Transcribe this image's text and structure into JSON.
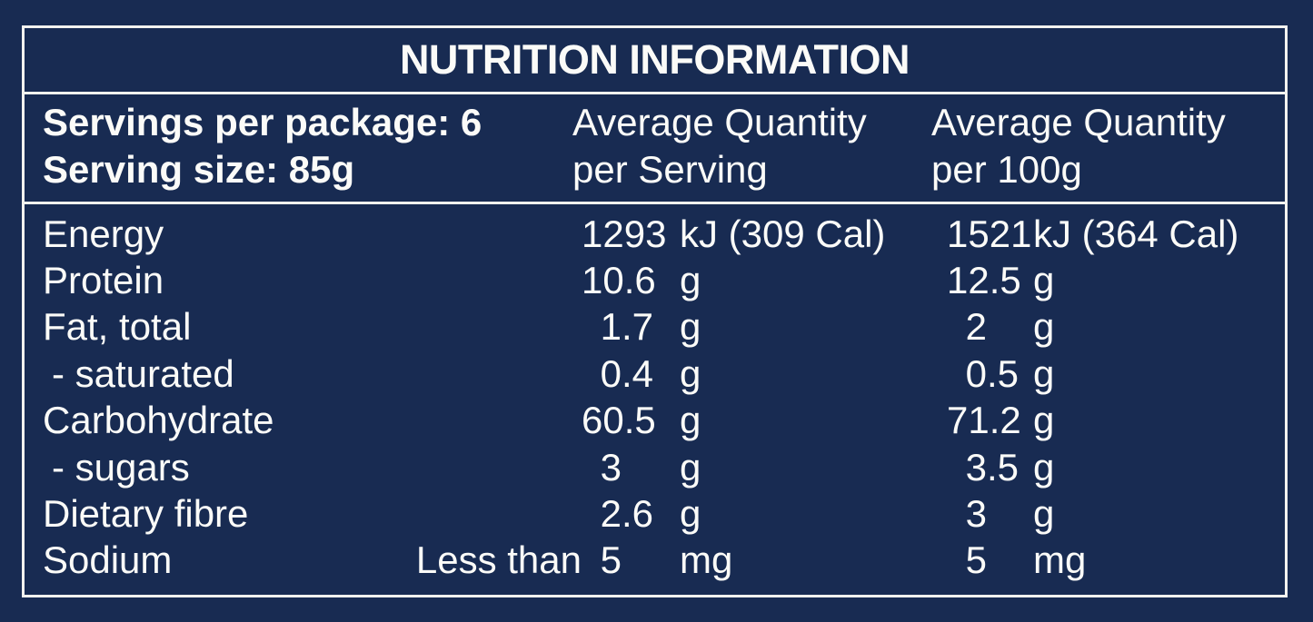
{
  "colors": {
    "background": "#182B52",
    "text": "#FBFBF8",
    "rules": "#F2F2EF"
  },
  "title": "NUTRITION INFORMATION",
  "header": {
    "servings_line": "Servings per package: 6",
    "serving_size_line": "Serving size: 85g",
    "per_serving": {
      "line1": "Average Quantity",
      "line2": "per Serving"
    },
    "per_100g": {
      "line1": "Average Quantity",
      "line2": "per 100g"
    }
  },
  "rows": [
    {
      "label": "Energy",
      "serving": {
        "value": "1293",
        "unit": "kJ (309 Cal)"
      },
      "per_100g": {
        "value": "1521",
        "unit": "kJ (364 Cal)"
      }
    },
    {
      "label": "Protein",
      "serving": {
        "value": "10.6",
        "unit": "g"
      },
      "per_100g": {
        "value": "12.5",
        "unit": "g"
      }
    },
    {
      "label": "Fat, total",
      "serving": {
        "value": "1.7",
        "unit": "g"
      },
      "per_100g": {
        "value": "2",
        "unit": "g"
      }
    },
    {
      "label": "- saturated",
      "serving": {
        "value": "0.4",
        "unit": "g"
      },
      "per_100g": {
        "value": "0.5",
        "unit": "g"
      }
    },
    {
      "label": "Carbohydrate",
      "serving": {
        "value": "60.5",
        "unit": "g"
      },
      "per_100g": {
        "value": "71.2",
        "unit": "g"
      }
    },
    {
      "label": "- sugars",
      "serving": {
        "value": "3",
        "unit": "g"
      },
      "per_100g": {
        "value": "3.5",
        "unit": "g"
      }
    },
    {
      "label": "Dietary fibre",
      "serving": {
        "value": "2.6",
        "unit": "g"
      },
      "per_100g": {
        "value": "3",
        "unit": "g"
      }
    },
    {
      "label": "Sodium",
      "serving": {
        "qualifier": "Less than",
        "value": "5",
        "unit": "mg"
      },
      "per_100g": {
        "value": "5",
        "unit": "mg"
      }
    }
  ]
}
